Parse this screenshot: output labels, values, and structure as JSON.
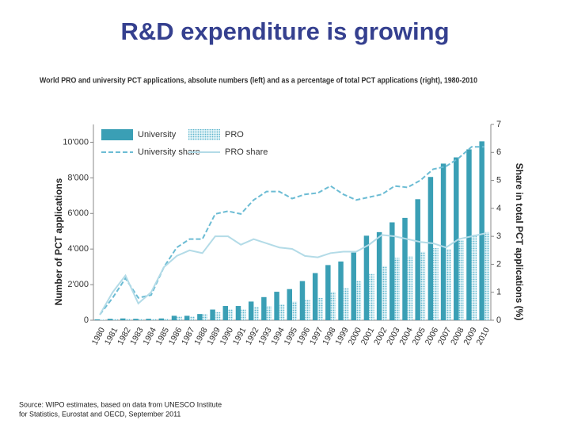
{
  "slide": {
    "title": "R&D expenditure is growing",
    "source": [
      "Source: WIPO estimates, based on data from UNESCO Institute",
      "for Statistics, Eurostat and OECD, September 2011"
    ]
  },
  "chart_data": {
    "type": "bar",
    "title": "World PRO and university PCT applications, absolute numbers (left) and as a percentage of total PCT applications (right), 1980-2010",
    "y_label": "Number of PCT applications",
    "y2_label": "Share in total PCT applications (%)",
    "categories": [
      "1980",
      "1981",
      "1982",
      "1983",
      "1984",
      "1985",
      "1986",
      "1987",
      "1988",
      "1989",
      "1990",
      "1991",
      "1992",
      "1993",
      "1994",
      "1995",
      "1996",
      "1997",
      "1998",
      "1999",
      "2000",
      "2001",
      "2002",
      "2003",
      "2004",
      "2005",
      "2006",
      "2007",
      "2008",
      "2009",
      "2010"
    ],
    "ylim": [
      0,
      11000
    ],
    "yticks": [
      0,
      {
        "value": 2000,
        "label": "2'000"
      },
      {
        "value": 4000,
        "label": "4'000"
      },
      {
        "value": 6000,
        "label": "6'000"
      },
      {
        "value": 8000,
        "label": "8'000"
      },
      {
        "value": 10000,
        "label": "10'000"
      }
    ],
    "y2lim": [
      0,
      7
    ],
    "y2ticks": [
      0,
      1,
      2,
      3,
      4,
      5,
      6,
      7
    ],
    "series": [
      {
        "name": "University",
        "kind": "bar",
        "color": "#3a9fb5",
        "pattern": false,
        "values": [
          50,
          80,
          100,
          80,
          80,
          100,
          250,
          250,
          350,
          600,
          800,
          800,
          1050,
          1300,
          1600,
          1750,
          2200,
          2650,
          3100,
          3300,
          3800,
          4750,
          4950,
          5500,
          5750,
          6800,
          8050,
          8800,
          9150,
          9600,
          10050
        ]
      },
      {
        "name": "PRO",
        "kind": "bar",
        "color": "#7cc6da",
        "pattern": true,
        "values": [
          30,
          60,
          80,
          60,
          60,
          80,
          200,
          200,
          350,
          450,
          600,
          600,
          750,
          800,
          900,
          1050,
          1150,
          1250,
          1600,
          1800,
          2200,
          2600,
          3050,
          3500,
          3600,
          3850,
          4050,
          4000,
          4500,
          4800,
          4950
        ]
      },
      {
        "name": "University share",
        "kind": "line",
        "axis": "y2",
        "color": "#6cbcd4",
        "dashed": true,
        "values": [
          0.2,
          0.8,
          1.5,
          0.8,
          0.9,
          1.9,
          2.6,
          2.9,
          2.9,
          3.8,
          3.9,
          3.8,
          4.3,
          4.6,
          4.6,
          4.35,
          4.5,
          4.55,
          4.8,
          4.5,
          4.3,
          4.4,
          4.5,
          4.8,
          4.75,
          5.0,
          5.4,
          5.5,
          5.8,
          6.2,
          6.2
        ]
      },
      {
        "name": "PRO share",
        "kind": "line",
        "axis": "y2",
        "color": "#b3dbe7",
        "dashed": false,
        "values": [
          0.2,
          1.0,
          1.6,
          0.6,
          1.0,
          1.9,
          2.3,
          2.5,
          2.4,
          3.0,
          3.0,
          2.7,
          2.9,
          2.75,
          2.6,
          2.55,
          2.3,
          2.25,
          2.4,
          2.45,
          2.45,
          2.7,
          3.05,
          3.0,
          2.9,
          2.8,
          2.75,
          2.6,
          2.9,
          3.0,
          3.1
        ]
      }
    ]
  }
}
